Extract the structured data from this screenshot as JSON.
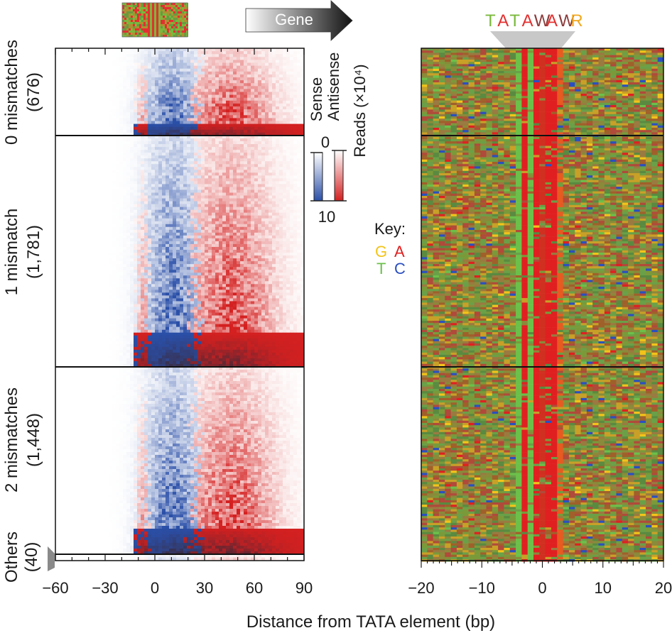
{
  "chart_data": [
    {
      "type": "heatmap",
      "title": "",
      "xlabel": "Distance from TATA element (bp)",
      "xlim": [
        -60,
        90
      ],
      "xticks": [
        "-60",
        "-30",
        "0",
        "30",
        "60",
        "90"
      ],
      "gene_arrow_label": "Gene",
      "groups": [
        {
          "name": "0 mismatches",
          "count": "(676)"
        },
        {
          "name": "1 mismatch",
          "count": "(1,781)"
        },
        {
          "name": "2 mismatches",
          "count": "(1,448)"
        },
        {
          "name": "Others",
          "count": "(40)"
        }
      ],
      "series": [
        {
          "name": "Sense",
          "color": "#2a4fa8"
        },
        {
          "name": "Antisense",
          "color": "#d42020"
        }
      ],
      "colorbar": {
        "label": "Reads (×10⁴)",
        "min_label": "0",
        "max_label": "10",
        "min": 0,
        "max": 10
      }
    },
    {
      "type": "heatmap",
      "motif": "TATAWAWR",
      "motif_colors": [
        "#7ab83c",
        "#e23030",
        "#7ab83c",
        "#e23030",
        "#8b3a3a",
        "#e23030",
        "#8b3a3a",
        "#f2a81e"
      ],
      "xlim": [
        -20,
        20
      ],
      "xticks": [
        "-20",
        "-10",
        "0",
        "10",
        "20"
      ],
      "key": {
        "title": "Key:",
        "bases": [
          {
            "base": "G",
            "color": "#f2c41a"
          },
          {
            "base": "A",
            "color": "#e02020"
          },
          {
            "base": "T",
            "color": "#6cc04a"
          },
          {
            "base": "C",
            "color": "#2a4fc0"
          }
        ]
      }
    }
  ],
  "axis_label": "Distance from TATA element (bp)"
}
